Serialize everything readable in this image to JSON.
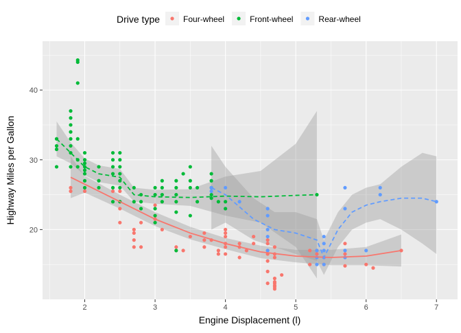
{
  "chart_data": {
    "type": "scatter",
    "title": "",
    "xlabel": "Engine Displacement (l)",
    "ylabel": "Highway Miles per Gallon",
    "xlim": [
      1.4,
      7.3
    ],
    "ylim": [
      10,
      47
    ],
    "x_ticks": [
      2,
      3,
      4,
      5,
      6,
      7
    ],
    "y_ticks": [
      20,
      30,
      40
    ],
    "grid": true,
    "legend_position": "top",
    "legend": {
      "title": "Drive type",
      "entries": [
        {
          "name": "Four-wheel",
          "color": "#F8766D"
        },
        {
          "name": "Front-wheel",
          "color": "#00BA38"
        },
        {
          "name": "Rear-wheel",
          "color": "#619CFF"
        }
      ]
    },
    "series": [
      {
        "name": "Four-wheel",
        "color": "#F8766D",
        "points": [
          [
            1.8,
            25.5
          ],
          [
            1.8,
            26
          ],
          [
            2.0,
            25.5
          ],
          [
            2.0,
            26
          ],
          [
            2.4,
            25.5
          ],
          [
            2.5,
            25.5
          ],
          [
            2.5,
            24
          ],
          [
            2.5,
            23
          ],
          [
            2.5,
            21
          ],
          [
            2.7,
            20
          ],
          [
            2.7,
            19.5
          ],
          [
            2.7,
            18.5
          ],
          [
            2.7,
            17.5
          ],
          [
            2.8,
            17.5
          ],
          [
            2.8,
            21
          ],
          [
            3.0,
            22
          ],
          [
            3.0,
            21.5
          ],
          [
            3.0,
            23.5
          ],
          [
            3.1,
            20
          ],
          [
            3.3,
            17.5
          ],
          [
            3.3,
            17
          ],
          [
            3.4,
            17
          ],
          [
            3.5,
            19
          ],
          [
            3.7,
            19.5
          ],
          [
            3.7,
            18.5
          ],
          [
            3.7,
            17.5
          ],
          [
            3.8,
            18.5
          ],
          [
            3.9,
            17
          ],
          [
            4.0,
            20
          ],
          [
            4.0,
            19.5
          ],
          [
            4.0,
            19
          ],
          [
            4.0,
            18
          ],
          [
            4.0,
            17.5
          ],
          [
            4.0,
            16.5
          ],
          [
            4.2,
            18
          ],
          [
            4.2,
            17.5
          ],
          [
            4.3,
            17
          ],
          [
            4.4,
            19
          ],
          [
            4.4,
            18
          ],
          [
            4.6,
            18.5
          ],
          [
            4.6,
            17
          ],
          [
            4.6,
            16.5
          ],
          [
            4.6,
            15.5
          ],
          [
            4.7,
            17.5
          ],
          [
            4.7,
            16.5
          ],
          [
            4.7,
            13
          ],
          [
            4.7,
            12.5
          ],
          [
            4.7,
            12
          ],
          [
            4.7,
            11.8
          ],
          [
            4.7,
            12.3
          ],
          [
            4.7,
            11.5
          ],
          [
            4.6,
            12.3
          ],
          [
            5.2,
            17
          ],
          [
            5.2,
            15
          ],
          [
            5.3,
            17
          ],
          [
            5.3,
            16.5
          ],
          [
            5.4,
            16
          ],
          [
            5.4,
            15
          ],
          [
            5.7,
            14.8
          ],
          [
            5.7,
            18
          ],
          [
            6.0,
            15
          ],
          [
            6.1,
            14.5
          ],
          [
            6.5,
            17
          ],
          [
            5.7,
            16.5
          ],
          [
            4.2,
            16
          ],
          [
            3.9,
            16.5
          ],
          [
            4.6,
            14
          ],
          [
            4.8,
            13.5
          ],
          [
            4.6,
            18
          ],
          [
            4.7,
            16
          ]
        ]
      },
      {
        "name": "Front-wheel",
        "color": "#00BA38",
        "points": [
          [
            1.6,
            29
          ],
          [
            1.6,
            31.5
          ],
          [
            1.6,
            32
          ],
          [
            1.6,
            33
          ],
          [
            1.8,
            29
          ],
          [
            1.8,
            31
          ],
          [
            1.8,
            32
          ],
          [
            1.8,
            33
          ],
          [
            1.8,
            34
          ],
          [
            1.8,
            35
          ],
          [
            1.8,
            36
          ],
          [
            1.8,
            37
          ],
          [
            1.9,
            44
          ],
          [
            1.9,
            44.3
          ],
          [
            1.9,
            41
          ],
          [
            1.9,
            33
          ],
          [
            1.9,
            30
          ],
          [
            1.9,
            29
          ],
          [
            2.0,
            29
          ],
          [
            2.0,
            28
          ],
          [
            2.0,
            27
          ],
          [
            2.0,
            26
          ],
          [
            2.0,
            30
          ],
          [
            2.0,
            31
          ],
          [
            2.0,
            29.5
          ],
          [
            2.0,
            28.5
          ],
          [
            2.2,
            29
          ],
          [
            2.2,
            26
          ],
          [
            2.2,
            27
          ],
          [
            2.4,
            31
          ],
          [
            2.4,
            30
          ],
          [
            2.4,
            29
          ],
          [
            2.4,
            28
          ],
          [
            2.4,
            26
          ],
          [
            2.4,
            24
          ],
          [
            2.5,
            30
          ],
          [
            2.5,
            29
          ],
          [
            2.5,
            28
          ],
          [
            2.5,
            27
          ],
          [
            2.5,
            26
          ],
          [
            2.5,
            31
          ],
          [
            2.7,
            26
          ],
          [
            2.7,
            24
          ],
          [
            2.8,
            24
          ],
          [
            2.8,
            23
          ],
          [
            2.8,
            25
          ],
          [
            3.0,
            26
          ],
          [
            3.0,
            25
          ],
          [
            3.0,
            22
          ],
          [
            3.0,
            23
          ],
          [
            3.0,
            21
          ],
          [
            3.1,
            26
          ],
          [
            3.1,
            27
          ],
          [
            3.1,
            25
          ],
          [
            3.1,
            24
          ],
          [
            3.3,
            26
          ],
          [
            3.3,
            27
          ],
          [
            3.3,
            25
          ],
          [
            3.3,
            24
          ],
          [
            3.4,
            28
          ],
          [
            3.5,
            29
          ],
          [
            3.5,
            27
          ],
          [
            3.5,
            26
          ],
          [
            3.6,
            26
          ],
          [
            3.6,
            24
          ],
          [
            3.8,
            26
          ],
          [
            3.8,
            27
          ],
          [
            3.8,
            28
          ],
          [
            3.8,
            25
          ],
          [
            3.9,
            24
          ],
          [
            4.0,
            23
          ],
          [
            4.0,
            24
          ],
          [
            3.3,
            17
          ],
          [
            5.3,
            25
          ],
          [
            3.8,
            24.5
          ],
          [
            2.5,
            24
          ],
          [
            3.3,
            22.5
          ],
          [
            3.5,
            22
          ]
        ]
      },
      {
        "name": "Rear-wheel",
        "color": "#619CFF",
        "points": [
          [
            3.8,
            26
          ],
          [
            4.0,
            26
          ],
          [
            4.2,
            24
          ],
          [
            4.6,
            23
          ],
          [
            4.6,
            22
          ],
          [
            4.6,
            20
          ],
          [
            4.6,
            19
          ],
          [
            5.3,
            16
          ],
          [
            5.4,
            17
          ],
          [
            5.4,
            18
          ],
          [
            5.4,
            16
          ],
          [
            5.4,
            15
          ],
          [
            5.7,
            26
          ],
          [
            5.7,
            23
          ],
          [
            5.7,
            17
          ],
          [
            5.7,
            16
          ],
          [
            6.0,
            17
          ],
          [
            6.2,
            26
          ],
          [
            6.2,
            25
          ],
          [
            7.0,
            24
          ],
          [
            5.3,
            15
          ],
          [
            5.3,
            17
          ],
          [
            4.6,
            17
          ],
          [
            5.4,
            19
          ],
          [
            3.8,
            25.5
          ]
        ]
      }
    ],
    "smooth": [
      {
        "name": "Four-wheel",
        "color": "#F8766D",
        "linetype": "solid",
        "points": [
          [
            1.8,
            27.5
          ],
          [
            2.0,
            26.5
          ],
          [
            2.5,
            24
          ],
          [
            3.0,
            21.5
          ],
          [
            3.5,
            19.5
          ],
          [
            4.0,
            18
          ],
          [
            4.5,
            16.8
          ],
          [
            5.0,
            16.2
          ],
          [
            5.5,
            16
          ],
          [
            6.0,
            16.2
          ],
          [
            6.5,
            17
          ]
        ],
        "band": [
          [
            1.8,
            24.5,
            30.5
          ],
          [
            2.0,
            25.3,
            27.7
          ],
          [
            2.5,
            23,
            25
          ],
          [
            3.0,
            20.5,
            22.5
          ],
          [
            3.5,
            18.6,
            20.4
          ],
          [
            4.0,
            17.2,
            18.8
          ],
          [
            4.5,
            15.9,
            17.7
          ],
          [
            5.0,
            15.3,
            17.1
          ],
          [
            5.5,
            14.9,
            17.1
          ],
          [
            6.0,
            14.9,
            17.5
          ],
          [
            6.5,
            14.7,
            19.3
          ]
        ]
      },
      {
        "name": "Front-wheel",
        "color": "#00BA38",
        "linetype": "dashed",
        "points": [
          [
            1.6,
            33
          ],
          [
            1.8,
            31
          ],
          [
            2.0,
            29
          ],
          [
            2.2,
            28
          ],
          [
            2.5,
            27.5
          ],
          [
            2.7,
            25
          ],
          [
            3.0,
            24.7
          ],
          [
            3.5,
            24.6
          ],
          [
            4.0,
            24.8
          ],
          [
            4.5,
            24.7
          ],
          [
            5.0,
            24.9
          ],
          [
            5.3,
            25
          ]
        ],
        "band": [
          [
            1.6,
            30.5,
            35.5
          ],
          [
            1.8,
            29.5,
            32.5
          ],
          [
            2.0,
            27.8,
            30.2
          ],
          [
            2.2,
            26.8,
            29.2
          ],
          [
            2.5,
            26.3,
            28.7
          ],
          [
            2.7,
            24,
            26
          ],
          [
            3.0,
            23.7,
            25.7
          ],
          [
            3.5,
            23.4,
            25.8
          ],
          [
            4.0,
            22,
            27.6
          ],
          [
            4.5,
            21,
            28.4
          ],
          [
            5.0,
            17.5,
            32.3
          ],
          [
            5.3,
            13,
            37
          ]
        ]
      },
      {
        "name": "Rear-wheel",
        "color": "#619CFF",
        "linetype": "dashed",
        "points": [
          [
            3.8,
            26
          ],
          [
            4.0,
            25
          ],
          [
            4.4,
            21.5
          ],
          [
            4.7,
            20
          ],
          [
            5.0,
            19.5
          ],
          [
            5.3,
            18.5
          ],
          [
            5.4,
            16
          ],
          [
            5.6,
            20
          ],
          [
            5.8,
            22.5
          ],
          [
            6.0,
            23.5
          ],
          [
            6.2,
            24
          ],
          [
            6.5,
            24.5
          ],
          [
            6.8,
            24.5
          ],
          [
            7.0,
            24
          ]
        ],
        "band": [
          [
            3.8,
            20,
            32
          ],
          [
            4.0,
            21,
            29
          ],
          [
            4.4,
            18.5,
            24.5
          ],
          [
            4.7,
            17.5,
            22.5
          ],
          [
            5.0,
            16.5,
            22.5
          ],
          [
            5.3,
            15.5,
            21.5
          ],
          [
            5.4,
            13.5,
            18.5
          ],
          [
            5.6,
            17.5,
            22.5
          ],
          [
            5.8,
            20,
            25
          ],
          [
            6.0,
            21,
            26
          ],
          [
            6.2,
            21.5,
            26.5
          ],
          [
            6.5,
            20,
            29
          ],
          [
            6.8,
            18,
            31
          ],
          [
            7.0,
            16.5,
            30.5
          ]
        ]
      }
    ]
  }
}
